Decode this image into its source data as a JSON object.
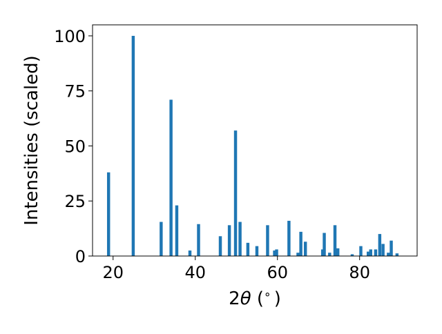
{
  "chart_data": {
    "type": "bar",
    "xlabel_main": "2",
    "xlabel_theta": "θ",
    "xlabel_rest": " (",
    "xlabel_degree": "∘",
    "xlabel_close": ")",
    "ylabel": "Intensities (scaled)",
    "xlim": [
      15,
      94
    ],
    "ylim": [
      0,
      105
    ],
    "xticks": [
      20,
      40,
      60,
      80
    ],
    "yticks": [
      0,
      25,
      50,
      75,
      100
    ],
    "bar_color": "#1f77b4",
    "grid": false,
    "bar_width": 0.75,
    "x": [
      18.9,
      24.9,
      31.7,
      34.1,
      35.5,
      38.7,
      40.8,
      46.1,
      48.3,
      49.8,
      50.9,
      52.8,
      55.0,
      57.6,
      59.3,
      59.8,
      62.8,
      65.0,
      65.7,
      66.8,
      71.0,
      71.4,
      72.7,
      74.0,
      74.7,
      78.2,
      80.3,
      82.1,
      82.7,
      83.9,
      84.9,
      85.7,
      87.0,
      87.7,
      89.1
    ],
    "values": [
      38,
      100,
      15.5,
      71,
      23,
      2.5,
      14.5,
      9,
      14,
      57,
      15.5,
      6,
      4.5,
      14,
      2.5,
      3,
      16,
      1.5,
      11,
      6.5,
      3,
      10.5,
      1.5,
      14,
      3.5,
      0.8,
      4.5,
      2,
      3,
      3,
      10,
      5.5,
      1.5,
      7,
      1.2
    ]
  }
}
